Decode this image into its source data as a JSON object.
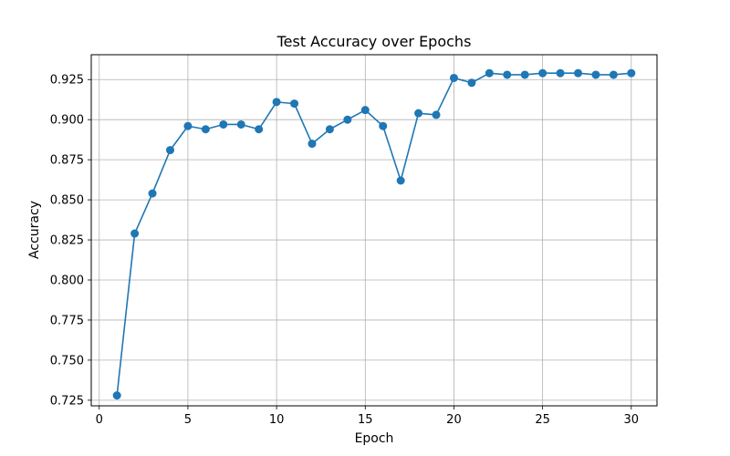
{
  "chart_data": {
    "type": "line",
    "title": "Test Accuracy over Epochs",
    "xlabel": "Epoch",
    "ylabel": "Accuracy",
    "xlim": [
      -0.45,
      31.45
    ],
    "ylim": [
      0.7215,
      0.9405
    ],
    "x_ticks": [
      0,
      5,
      10,
      15,
      20,
      25,
      30
    ],
    "y_ticks": [
      0.725,
      0.75,
      0.775,
      0.8,
      0.825,
      0.85,
      0.875,
      0.9,
      0.925
    ],
    "grid": true,
    "marker": "circle",
    "color": "#1f77b4",
    "series": [
      {
        "x": [
          1,
          2,
          3,
          4,
          5,
          6,
          7,
          8,
          9,
          10,
          11,
          12,
          13,
          14,
          15,
          16,
          17,
          18,
          19,
          20,
          21,
          22,
          23,
          24,
          25,
          26,
          27,
          28,
          29,
          30
        ],
        "values": [
          0.728,
          0.829,
          0.854,
          0.881,
          0.896,
          0.894,
          0.897,
          0.897,
          0.894,
          0.911,
          0.91,
          0.885,
          0.894,
          0.9,
          0.906,
          0.896,
          0.862,
          0.904,
          0.903,
          0.926,
          0.923,
          0.929,
          0.928,
          0.928,
          0.929,
          0.929,
          0.929,
          0.928,
          0.928,
          0.929
        ]
      }
    ]
  }
}
